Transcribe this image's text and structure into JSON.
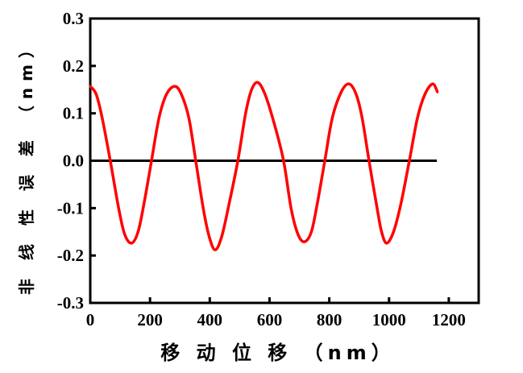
{
  "chart_data": {
    "type": "line",
    "title": "",
    "xlabel": "移 动 位 移 （nm）",
    "ylabel": "非 线 性 误 差 （nm）",
    "xlim": [
      0,
      1300
    ],
    "ylim": [
      -0.3,
      0.3
    ],
    "xticks": [
      "0",
      "200",
      "400",
      "600",
      "800",
      "1000",
      "1200"
    ],
    "yticks": [
      "-0.3",
      "-0.2",
      "-0.1",
      "0.0",
      "0.1",
      "0.2",
      "0.3"
    ],
    "grid": false,
    "legend": "none",
    "reference_line": {
      "y": 0,
      "x_range": [
        0,
        1160
      ],
      "color": "#000000"
    },
    "series": [
      {
        "color": "#ff0000",
        "x": [
          0,
          20,
          40,
          67,
          95,
          115,
          138,
          160,
          180,
          205,
          230,
          255,
          283,
          305,
          330,
          353,
          378,
          398,
          418,
          440,
          465,
          494,
          520,
          540,
          561,
          585,
          615,
          647,
          672,
          695,
          717,
          740,
          760,
          785,
          810,
          840,
          866,
          890,
          910,
          933,
          960,
          975,
          992,
          1015,
          1040,
          1068,
          1095,
          1120,
          1146,
          1162
        ],
        "y": [
          0.157,
          0.14,
          0.09,
          0,
          -0.1,
          -0.155,
          -0.174,
          -0.15,
          -0.09,
          0,
          0.09,
          0.14,
          0.157,
          0.14,
          0.09,
          0,
          -0.1,
          -0.16,
          -0.188,
          -0.16,
          -0.09,
          0,
          0.1,
          0.15,
          0.165,
          0.14,
          0.08,
          0,
          -0.1,
          -0.155,
          -0.171,
          -0.15,
          -0.09,
          0,
          0.09,
          0.145,
          0.162,
          0.14,
          0.09,
          0,
          -0.1,
          -0.15,
          -0.174,
          -0.15,
          -0.09,
          0,
          0.09,
          0.14,
          0.162,
          0.145
        ]
      }
    ]
  }
}
